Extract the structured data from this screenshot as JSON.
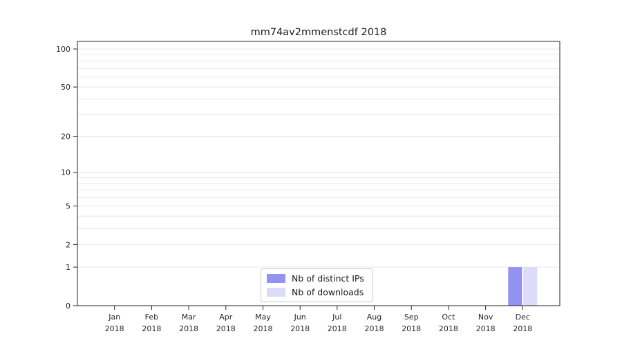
{
  "page": {
    "background_color": "#ffffff"
  },
  "chart_data": {
    "type": "bar",
    "title": "mm74av2mmenstcdf 2018",
    "categories": [
      "Jan",
      "Feb",
      "Mar",
      "Apr",
      "May",
      "Jun",
      "Jul",
      "Aug",
      "Sep",
      "Oct",
      "Nov",
      "Dec"
    ],
    "year_label": "2018",
    "series": [
      {
        "name": "Nb of distinct IPs",
        "color": "#9292f0",
        "values": [
          0,
          0,
          0,
          0,
          0,
          0,
          0,
          0,
          0,
          0,
          0,
          1
        ]
      },
      {
        "name": "Nb of downloads",
        "color": "#dcdcf8",
        "values": [
          0,
          0,
          0,
          0,
          0,
          0,
          0,
          0,
          0,
          0,
          0,
          1
        ]
      }
    ],
    "yticks": [
      0,
      1,
      2,
      5,
      10,
      20,
      50,
      100
    ],
    "gridline_values": [
      1,
      2,
      3,
      4,
      5,
      6,
      7,
      8,
      9,
      10,
      20,
      30,
      40,
      50,
      60,
      70,
      80,
      90,
      100
    ],
    "ylim": [
      0,
      100
    ],
    "yscale": "log1p",
    "xlabel": "",
    "ylabel": "",
    "grid": "horizontal",
    "legend_position": "lower-center",
    "gridline_color": "#e6e6e6",
    "axis_color": "#262626"
  }
}
